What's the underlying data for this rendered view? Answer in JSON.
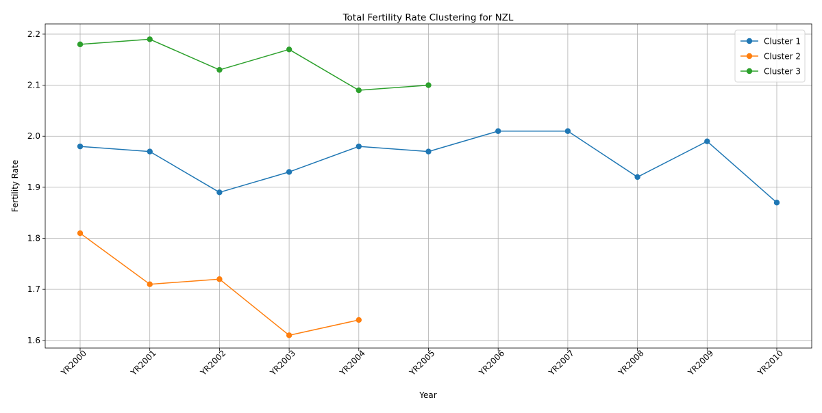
{
  "chart_data": {
    "type": "line",
    "title": "Total Fertility Rate Clustering for NZL",
    "xlabel": "Year",
    "ylabel": "Fertility Rate",
    "categories": [
      "YR2000",
      "YR2001",
      "YR2002",
      "YR2003",
      "YR2004",
      "YR2005",
      "YR2006",
      "YR2007",
      "YR2008",
      "YR2009",
      "YR2010"
    ],
    "ylim": [
      1.585,
      2.22
    ],
    "yticks": [
      "1.6",
      "1.7",
      "1.8",
      "1.9",
      "2.0",
      "2.1",
      "2.2"
    ],
    "grid": true,
    "legend_position": "top-right",
    "series": [
      {
        "name": "Cluster 1",
        "color": "#1f77b4",
        "values": [
          1.98,
          1.97,
          1.89,
          1.93,
          1.98,
          1.97,
          2.01,
          2.01,
          1.92,
          1.99,
          1.87
        ]
      },
      {
        "name": "Cluster 2",
        "color": "#ff7f0e",
        "values": [
          1.81,
          1.71,
          1.72,
          1.61,
          1.64,
          null,
          null,
          null,
          null,
          null,
          null
        ]
      },
      {
        "name": "Cluster 3",
        "color": "#2ca02c",
        "values": [
          2.18,
          2.19,
          2.13,
          2.17,
          2.09,
          2.1,
          null,
          null,
          null,
          null,
          null
        ]
      }
    ]
  }
}
